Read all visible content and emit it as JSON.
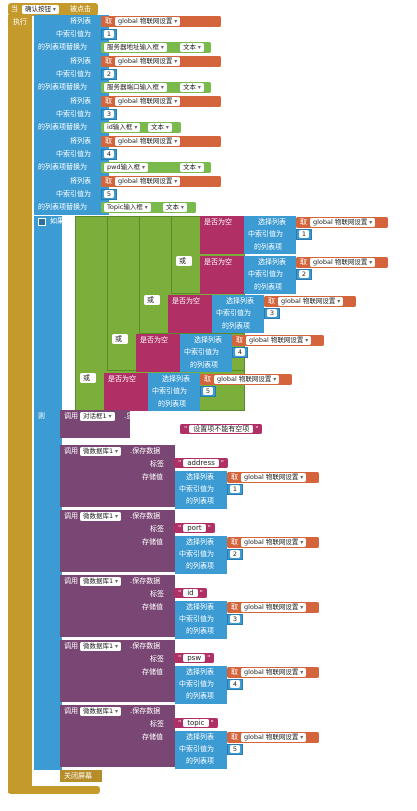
{
  "event": {
    "when": "当",
    "component": "确认按钮",
    "clicked": "被点击",
    "do": "执行"
  },
  "common": {
    "list_label": "将列表",
    "index_label": "中索引值为",
    "replace_label": "的列表项替换为",
    "get": "取",
    "global_var": "global 物联网设置",
    "text": "文本"
  },
  "replace_blocks": [
    {
      "index": "1",
      "source": "服务器地址输入框"
    },
    {
      "index": "2",
      "source": "服务器端口输入框"
    },
    {
      "index": "3",
      "source": "id输入框"
    },
    {
      "index": "4",
      "source": "pwd输入框"
    },
    {
      "index": "5",
      "source": "Topic输入框"
    }
  ],
  "if_block": {
    "if_label": "如果",
    "is_empty": "是否为空",
    "or_label": "或",
    "select_list": "选择列表",
    "index_label": "中索引值为",
    "item_label": "的列表项",
    "then_label": "则",
    "else_label": "否则"
  },
  "then_call": {
    "call": "调用",
    "component": "对话框1",
    "method": ".显示警告信息",
    "notice": "通知",
    "message": "设置项不能有空项"
  },
  "store_calls": [
    {
      "tag": "address",
      "index": "1"
    },
    {
      "tag": "port",
      "index": "2"
    },
    {
      "tag": "id",
      "index": "3"
    },
    {
      "tag": "psw",
      "index": "4"
    },
    {
      "tag": "topic",
      "index": "5"
    }
  ],
  "store_common": {
    "call": "调用",
    "component": "微数据库1",
    "method": ".保存数据",
    "tag_label": "标签",
    "value_label": "存储值"
  },
  "close_screen": "关闭屏幕"
}
